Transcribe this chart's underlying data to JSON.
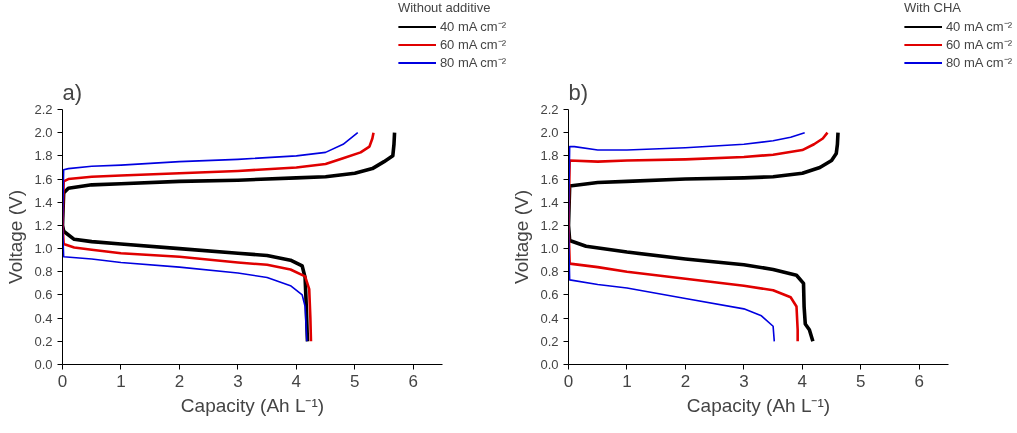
{
  "chart_data": [
    {
      "type": "line",
      "title": "a)",
      "legend_title": "Without additive",
      "xlabel": "Capacity (Ah L⁻¹)",
      "ylabel": "Voltage (V)",
      "xlim": [
        0,
        6.5
      ],
      "ylim": [
        0,
        2.2
      ],
      "xticks": [
        0,
        1,
        2,
        3,
        4,
        5,
        6
      ],
      "yticks": [
        {
          "value": 0,
          "label": "0.0"
        },
        0.2,
        0.4,
        0.6,
        0.8,
        {
          "value": 1,
          "label": "1.0"
        },
        1.2,
        1.4,
        1.6,
        1.8,
        {
          "value": 2,
          "label": "2.0"
        },
        2.2
      ],
      "grid": false,
      "legend": "top right",
      "line_style": "solid",
      "series": [
        {
          "name": "40 mA cm⁻²",
          "color": "#000000",
          "x": [
            4.19,
            4.17,
            4.15,
            4.1,
            3.9,
            3.5,
            3,
            2,
            1,
            0.5,
            0.2,
            0.02,
            0,
            0.02,
            0.1,
            0.5,
            1,
            2,
            3,
            4,
            4.5,
            5,
            5.3,
            5.5,
            5.65,
            5.67,
            5.68
          ],
          "values": [
            0.2,
            0.5,
            0.75,
            0.85,
            0.9,
            0.94,
            0.96,
            1.0,
            1.04,
            1.06,
            1.08,
            1.15,
            1.2,
            1.48,
            1.52,
            1.55,
            1.56,
            1.58,
            1.59,
            1.61,
            1.62,
            1.65,
            1.69,
            1.75,
            1.8,
            1.9,
            2.0
          ]
        },
        {
          "name": "60 mA cm⁻²",
          "color": "#e00000",
          "x": [
            4.25,
            4.24,
            4.22,
            4.15,
            3.9,
            3.5,
            3,
            2,
            1,
            0.5,
            0.2,
            0.02,
            0,
            0.02,
            0.1,
            0.5,
            1,
            2,
            3,
            4,
            4.5,
            4.8,
            5.1,
            5.25,
            5.3,
            5.32
          ],
          "values": [
            0.2,
            0.4,
            0.65,
            0.76,
            0.82,
            0.86,
            0.88,
            0.93,
            0.96,
            0.99,
            1.01,
            1.04,
            1.2,
            1.58,
            1.6,
            1.62,
            1.63,
            1.65,
            1.67,
            1.7,
            1.73,
            1.78,
            1.83,
            1.88,
            1.95,
            2.0
          ]
        },
        {
          "name": "80 mA cm⁻²",
          "color": "#0000e0",
          "x": [
            4.18,
            4.17,
            4.15,
            4.1,
            3.9,
            3.5,
            3,
            2,
            1,
            0.5,
            0.02,
            0,
            0.02,
            0.1,
            0.5,
            1,
            2,
            3,
            4,
            4.5,
            4.8,
            5.05
          ],
          "values": [
            0.2,
            0.3,
            0.5,
            0.6,
            0.68,
            0.75,
            0.79,
            0.84,
            0.88,
            0.91,
            0.93,
            1.2,
            1.68,
            1.69,
            1.71,
            1.72,
            1.75,
            1.77,
            1.8,
            1.83,
            1.9,
            2.0
          ]
        }
      ]
    },
    {
      "type": "line",
      "title": "b)",
      "legend_title": "With CHA",
      "xlabel": "Capacity (Ah L⁻¹)",
      "ylabel": "Voltage (V)",
      "xlim": [
        0,
        6.5
      ],
      "ylim": [
        0,
        2.2
      ],
      "xticks": [
        0,
        1,
        2,
        3,
        4,
        5,
        6
      ],
      "yticks": [
        {
          "value": 0,
          "label": "0.0"
        },
        0.2,
        0.4,
        0.6,
        0.8,
        {
          "value": 1,
          "label": "1.0"
        },
        1.2,
        1.4,
        1.6,
        1.8,
        {
          "value": 2,
          "label": "2.0"
        },
        2.2
      ],
      "grid": false,
      "legend": "top right",
      "line_style": "solid",
      "series": [
        {
          "name": "40 mA cm⁻²",
          "color": "#000000",
          "x": [
            4.18,
            4.12,
            4.05,
            4.03,
            4.02,
            3.9,
            3.5,
            3,
            2,
            1,
            0.3,
            0.02,
            0,
            0.02,
            0.5,
            1,
            2,
            3,
            3.5,
            4,
            4.3,
            4.5,
            4.58,
            4.6,
            4.61
          ],
          "values": [
            0.2,
            0.3,
            0.35,
            0.5,
            0.7,
            0.77,
            0.82,
            0.86,
            0.91,
            0.97,
            1.02,
            1.07,
            1.2,
            1.54,
            1.57,
            1.58,
            1.6,
            1.61,
            1.62,
            1.65,
            1.7,
            1.76,
            1.82,
            1.9,
            2.0
          ]
        },
        {
          "name": "60 mA cm⁻²",
          "color": "#e00000",
          "x": [
            3.92,
            3.92,
            3.9,
            3.8,
            3.5,
            3,
            2,
            1,
            0.5,
            0.02,
            0,
            0.02,
            0.5,
            1,
            2,
            3,
            3.5,
            4,
            4.2,
            4.35,
            4.43
          ],
          "values": [
            0.2,
            0.3,
            0.5,
            0.58,
            0.64,
            0.68,
            0.74,
            0.8,
            0.84,
            0.87,
            1.2,
            1.76,
            1.75,
            1.76,
            1.77,
            1.79,
            1.81,
            1.85,
            1.9,
            1.95,
            2.0
          ]
        },
        {
          "name": "80 mA cm⁻²",
          "color": "#0000e0",
          "x": [
            3.52,
            3.5,
            3.3,
            3,
            2,
            1,
            0.5,
            0.02,
            0,
            0.02,
            0.1,
            0.5,
            1,
            2,
            3,
            3.5,
            3.8,
            4.04
          ],
          "values": [
            0.2,
            0.33,
            0.42,
            0.48,
            0.57,
            0.66,
            0.69,
            0.73,
            1.2,
            1.88,
            1.88,
            1.85,
            1.85,
            1.87,
            1.9,
            1.93,
            1.96,
            2.0
          ]
        }
      ]
    }
  ]
}
